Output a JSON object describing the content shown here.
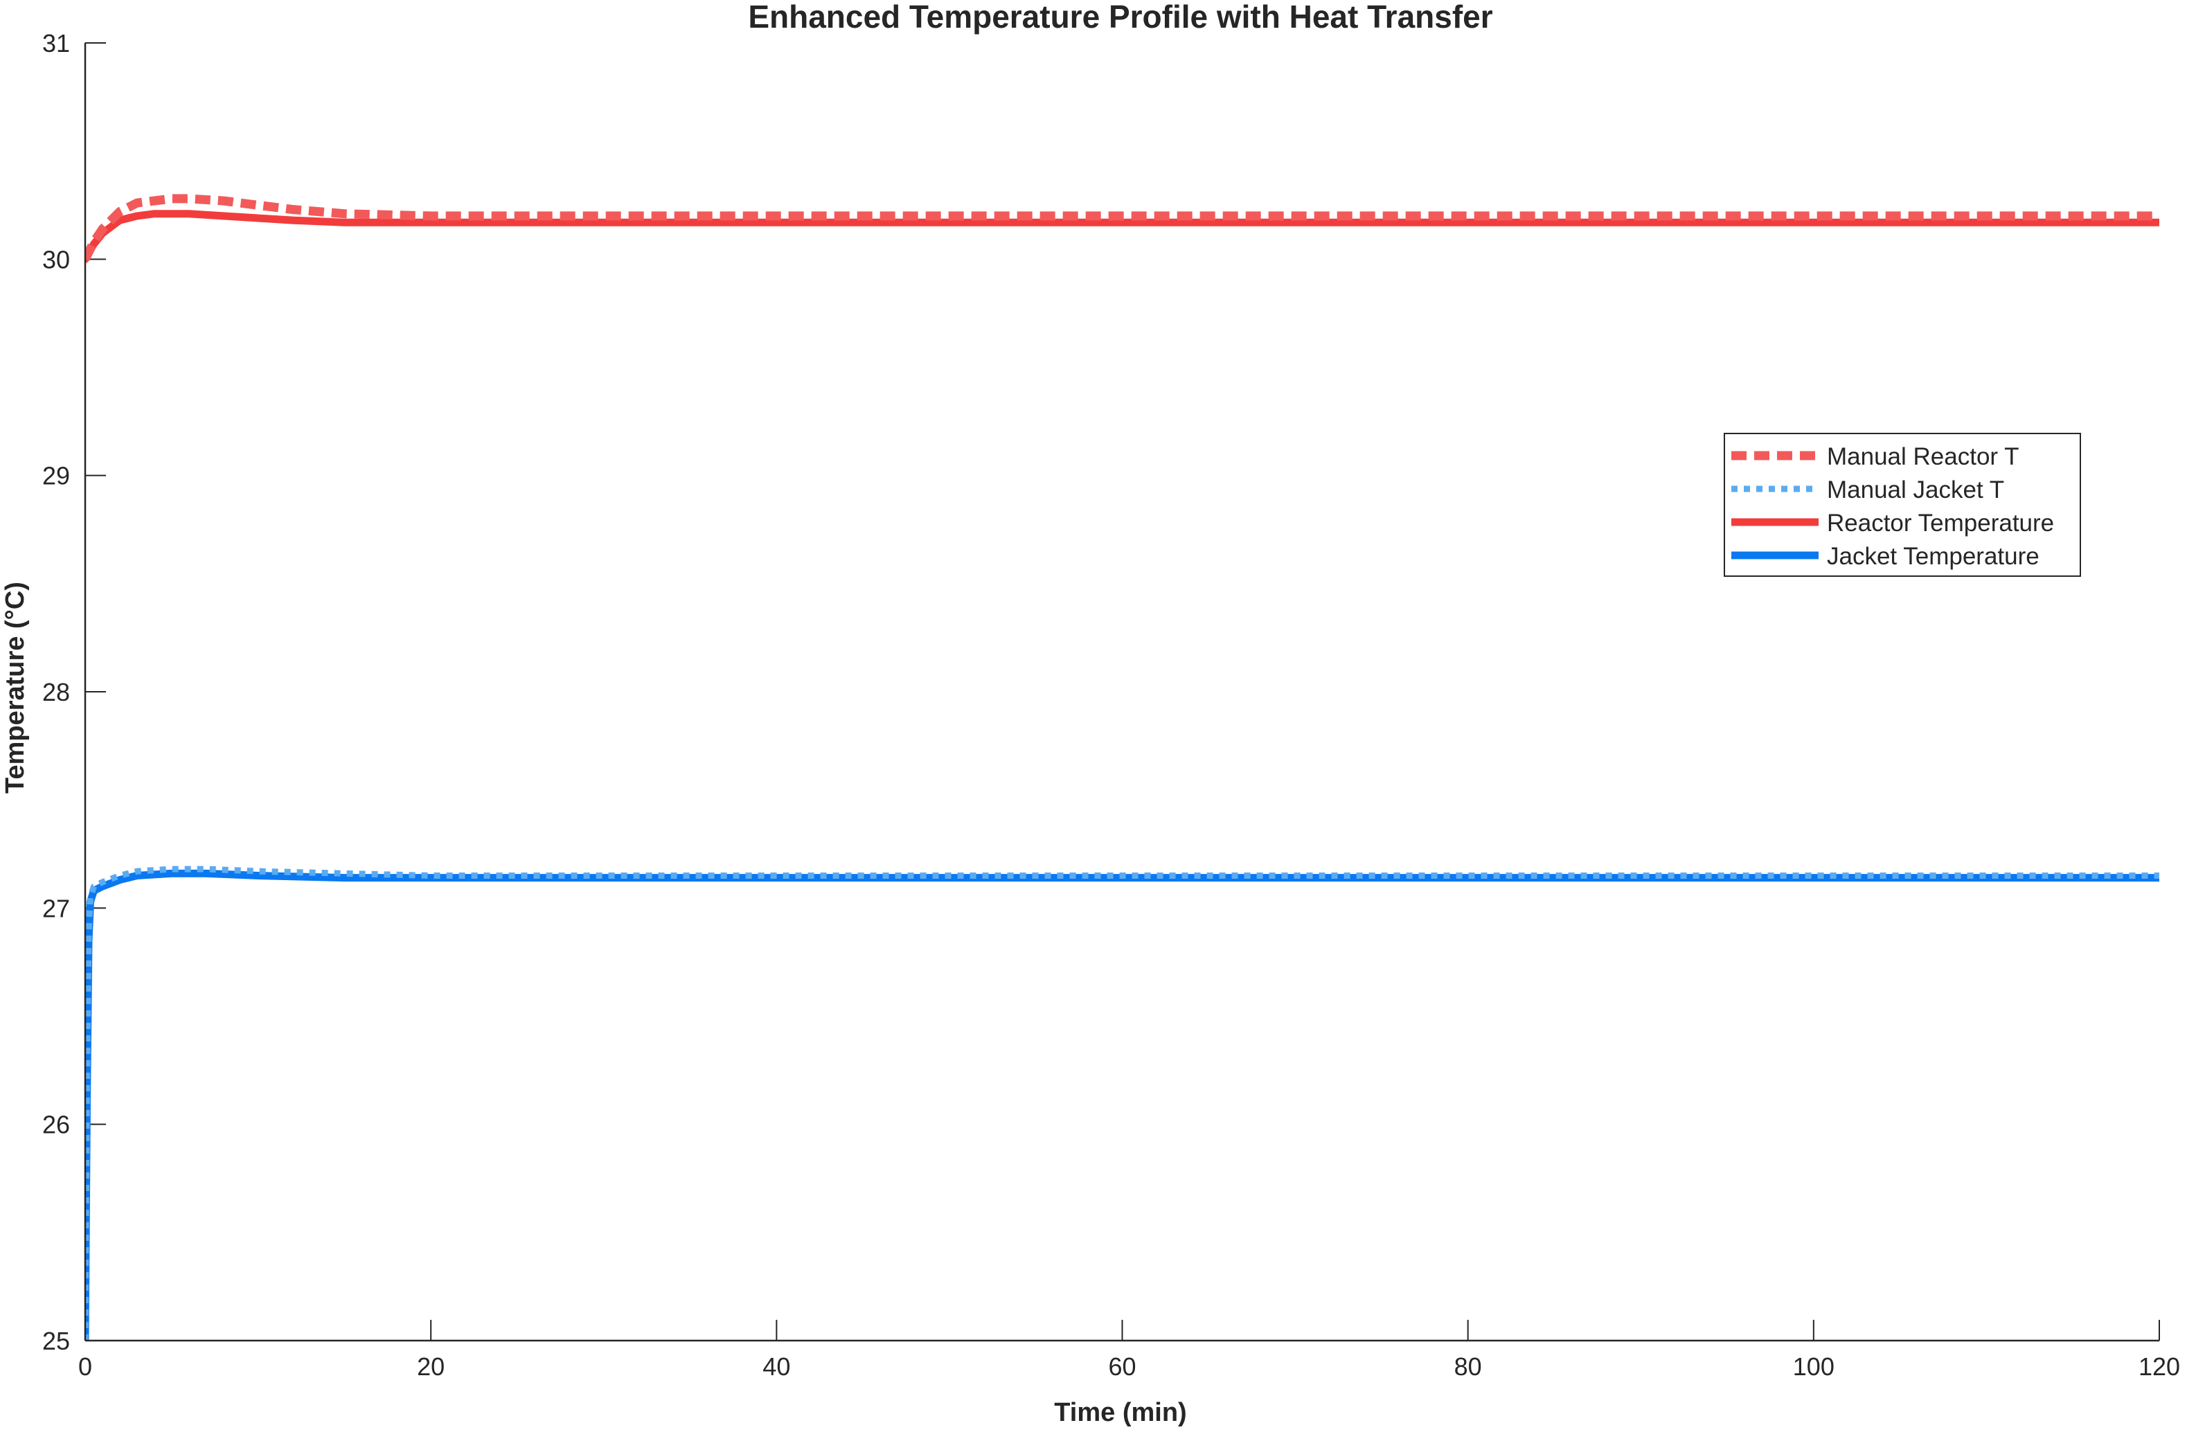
{
  "chart_data": {
    "type": "line",
    "title": "Enhanced Temperature Profile with Heat Transfer",
    "xlabel": "Time (min)",
    "ylabel": "Temperature (°C)",
    "xlim": [
      0,
      120
    ],
    "ylim": [
      25,
      31
    ],
    "xticks": [
      0,
      20,
      40,
      60,
      80,
      100,
      120
    ],
    "yticks": [
      25,
      26,
      27,
      28,
      29,
      30,
      31
    ],
    "grid": false,
    "legend_position": "right",
    "series": [
      {
        "name": "Manual Reactor T",
        "color": "#f25a5a",
        "style": "dashed",
        "x": [
          0,
          0.5,
          1,
          2,
          3,
          4,
          5,
          6,
          8,
          10,
          12,
          15,
          20,
          30,
          60,
          90,
          120
        ],
        "y": [
          30.0,
          30.08,
          30.14,
          30.22,
          30.26,
          30.27,
          30.28,
          30.28,
          30.27,
          30.25,
          30.23,
          30.21,
          30.2,
          30.2,
          30.2,
          30.2,
          30.2
        ]
      },
      {
        "name": "Manual Jacket T",
        "color": "#5aabf2",
        "style": "dotted",
        "x": [
          0,
          0.1,
          0.2,
          0.3,
          0.5,
          1,
          2,
          3,
          5,
          7,
          10,
          15,
          20,
          30,
          60,
          90,
          120
        ],
        "y": [
          25.0,
          26.2,
          26.9,
          27.05,
          27.1,
          27.12,
          27.15,
          27.17,
          27.18,
          27.18,
          27.17,
          27.16,
          27.15,
          27.15,
          27.15,
          27.15,
          27.15
        ]
      },
      {
        "name": "Reactor Temperature",
        "color": "#f23c3c",
        "style": "solid",
        "x": [
          0,
          0.5,
          1,
          2,
          3,
          4,
          5,
          6,
          8,
          10,
          12,
          15,
          20,
          30,
          60,
          90,
          120
        ],
        "y": [
          30.0,
          30.07,
          30.12,
          30.18,
          30.2,
          30.21,
          30.21,
          30.21,
          30.2,
          30.19,
          30.18,
          30.17,
          30.17,
          30.17,
          30.17,
          30.17,
          30.17
        ]
      },
      {
        "name": "Jacket Temperature",
        "color": "#0a78f0",
        "style": "solid",
        "x": [
          0,
          0.1,
          0.2,
          0.3,
          0.5,
          1,
          2,
          3,
          5,
          7,
          10,
          15,
          20,
          30,
          60,
          90,
          120
        ],
        "y": [
          25.0,
          26.1,
          26.85,
          27.03,
          27.08,
          27.1,
          27.13,
          27.15,
          27.16,
          27.16,
          27.15,
          27.14,
          27.14,
          27.14,
          27.14,
          27.14,
          27.14
        ]
      }
    ]
  }
}
